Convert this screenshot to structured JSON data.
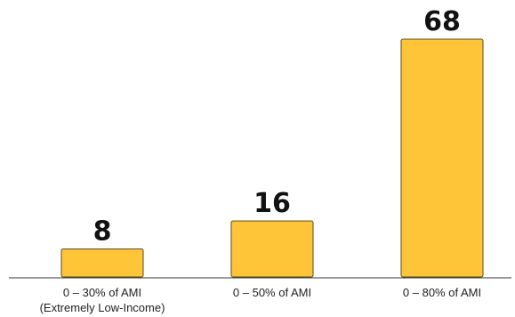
{
  "chart_data": {
    "type": "bar",
    "categories": [
      [
        "0 – 30% of AMI",
        "(Extremely Low-Income)"
      ],
      [
        "0 – 50% of AMI"
      ],
      [
        "0 – 80% of AMI"
      ]
    ],
    "values": [
      8,
      16,
      68
    ],
    "data_labels": [
      "8",
      "16",
      "68"
    ],
    "title": "",
    "xlabel": "",
    "ylabel": "",
    "ylim": [
      0,
      68
    ],
    "grid": false,
    "legend": "none",
    "colors": {
      "bar_fill": "#FFC538",
      "bar_stroke": "#5A4A1A",
      "label_text": "#111111"
    }
  }
}
